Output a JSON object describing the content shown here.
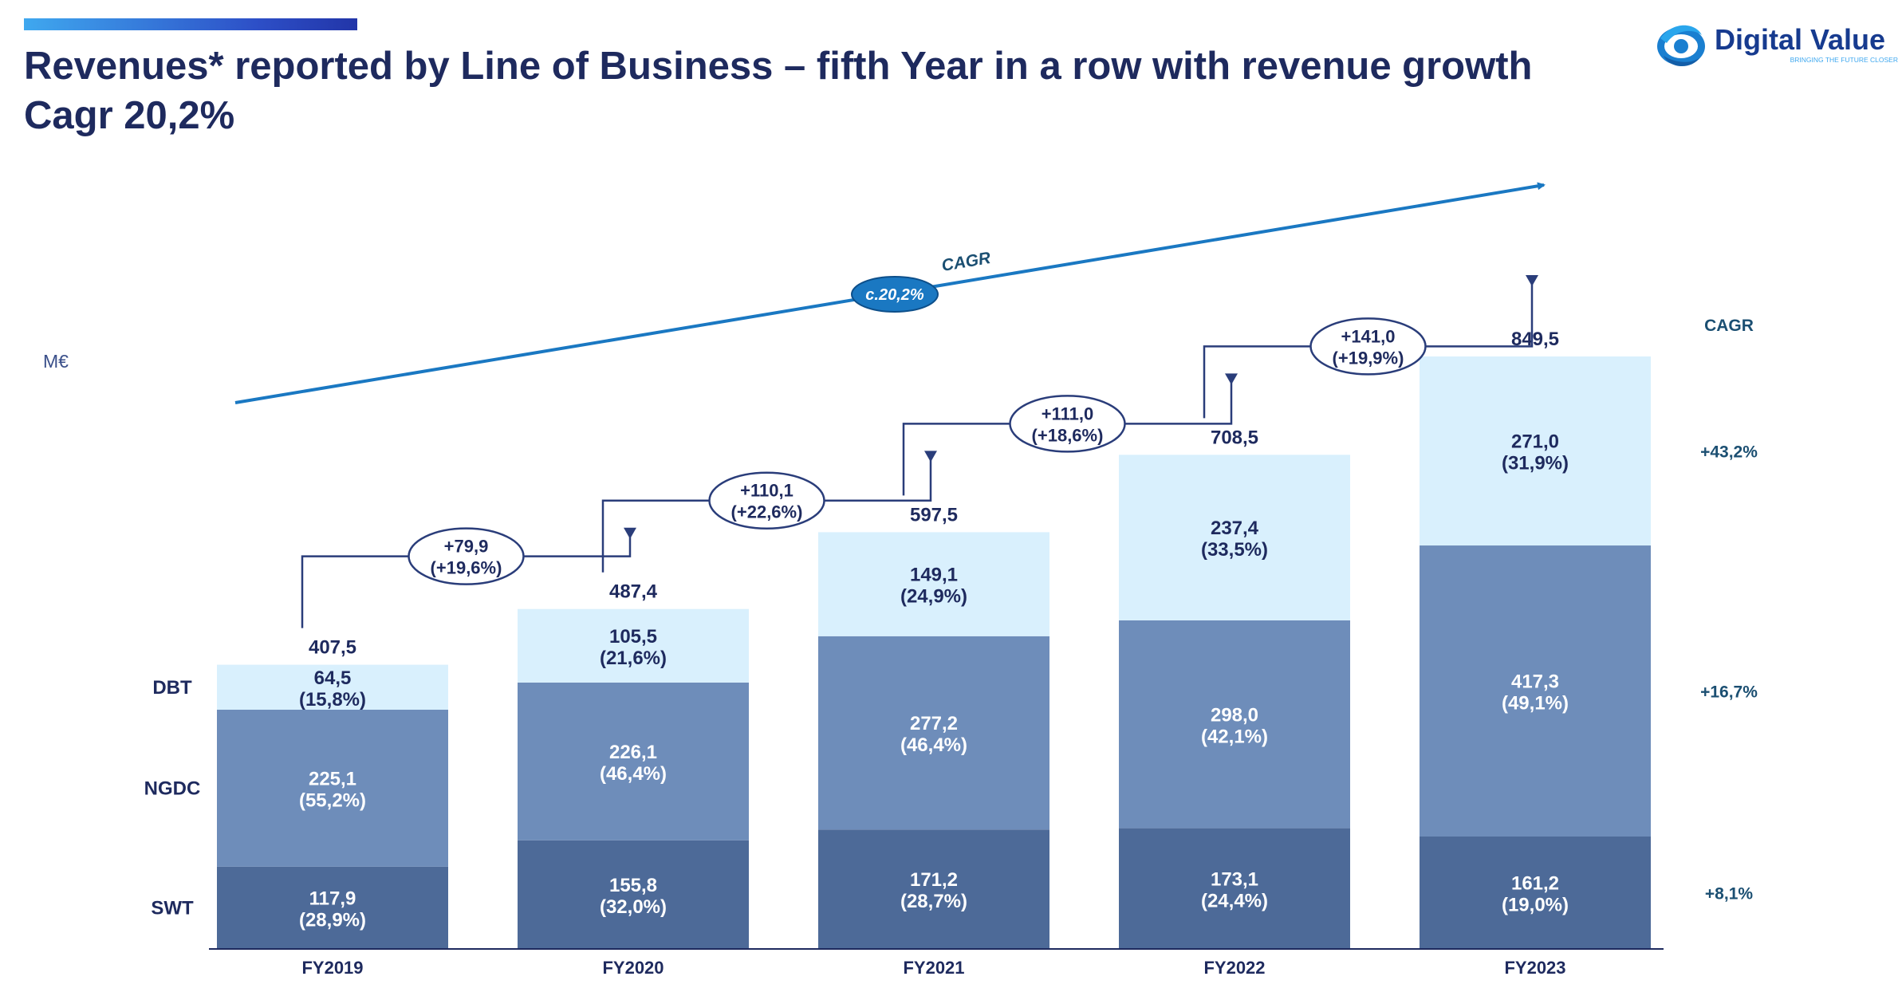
{
  "header": {
    "title_line1": "Revenues* reported by Line of Business – fifth Year in a row with revenue growth",
    "title_line2": "Cagr 20,2%"
  },
  "logo": {
    "name": "Digital Value",
    "tagline": "BRINGING THE FUTURE CLOSER"
  },
  "colors": {
    "title": "#1e2a5e",
    "accent": "#1a78c2",
    "swt": "#4d6a98",
    "ngdc": "#6e8dba",
    "dbt": "#d9f0fd",
    "label_dark": "#1e2a5e",
    "cagr_text": "#1b4f72"
  },
  "chart_data": {
    "type": "bar",
    "stacked": true,
    "unit_label": "M€",
    "categories": [
      "FY2019",
      "FY2020",
      "FY2021",
      "FY2022",
      "FY2023"
    ],
    "series": [
      {
        "name": "SWT",
        "values": [
          117.9,
          155.8,
          171.2,
          173.1,
          161.2
        ],
        "labels": [
          "117,9",
          "155,8",
          "171,2",
          "173,1",
          "161,2"
        ],
        "shares": [
          "(28,9%)",
          "(32,0%)",
          "(28,7%)",
          "(24,4%)",
          "(19,0%)"
        ],
        "cagr": "+8,1%"
      },
      {
        "name": "NGDC",
        "values": [
          225.1,
          226.1,
          277.2,
          298.0,
          417.3
        ],
        "labels": [
          "225,1",
          "226,1",
          "277,2",
          "298,0",
          "417,3"
        ],
        "shares": [
          "(55,2%)",
          "(46,4%)",
          "(46,4%)",
          "(42,1%)",
          "(49,1%)"
        ],
        "cagr": "+16,7%"
      },
      {
        "name": "DBT",
        "values": [
          64.5,
          105.5,
          149.1,
          237.4,
          271.0
        ],
        "labels": [
          "64,5",
          "105,5",
          "149,1",
          "237,4",
          "271,0"
        ],
        "shares": [
          "(15,8%)",
          "(21,6%)",
          "(24,9%)",
          "(33,5%)",
          "(31,9%)"
        ],
        "cagr": "+43,2%"
      }
    ],
    "totals": [
      407.5,
      487.4,
      597.5,
      708.5,
      849.5
    ],
    "total_labels": [
      "407,5",
      "487,4",
      "597,5",
      "708,5",
      "849,5"
    ],
    "growth": [
      {
        "abs": "+79,9",
        "pct": "(+19,6%)"
      },
      {
        "abs": "+110,1",
        "pct": "(+22,6%)"
      },
      {
        "abs": "+111,0",
        "pct": "(+18,6%)"
      },
      {
        "abs": "+141,0",
        "pct": "(+19,9%)"
      }
    ],
    "overall_cagr": {
      "label": "CAGR",
      "value": "c.20,2%"
    },
    "cagr_column_header": "CAGR",
    "ylim": [
      0,
      849.5
    ]
  }
}
